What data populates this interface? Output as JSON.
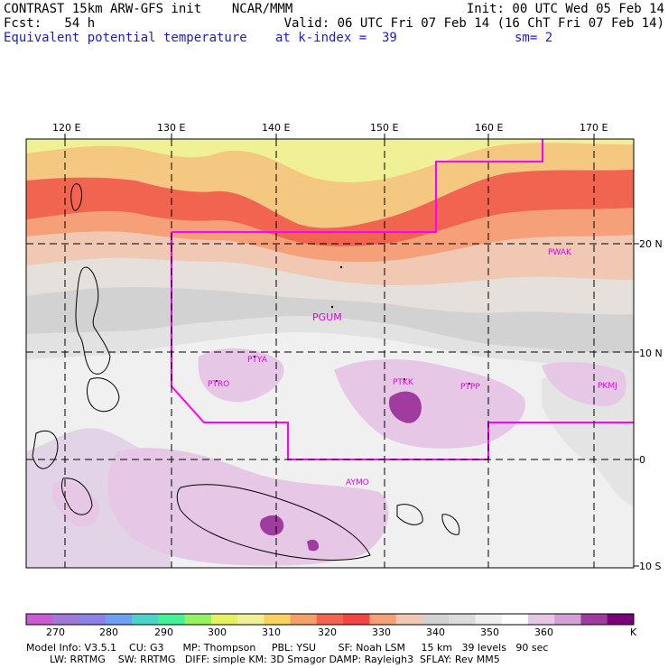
{
  "header": {
    "model_line": "CONTRAST 15km ARW-GFS init    NCAR/MMM",
    "init_line": "Init: 00 UTC Wed 05 Feb 14",
    "fcst_line": "Fcst:   54 h",
    "valid_line": "Valid: 06 UTC Fri 07 Feb 14 (16 ChT Fri 07 Feb 14)",
    "field_name": "Equivalent potential temperature",
    "level_line": "at k-index =  39",
    "smoothing_line": "sm= 2"
  },
  "map": {
    "lon_labels": [
      "120 E",
      "130 E",
      "140 E",
      "150 E",
      "160 E",
      "170 E"
    ],
    "lat_labels": [
      "20 N",
      "10 N",
      "0",
      "10 S"
    ],
    "stations": [
      "PWAK",
      "PGUM",
      "PTYA",
      "PTRO",
      "PTKK",
      "PTPP",
      "PKMJ",
      "AYMO"
    ],
    "bands_top_to_bottom_K": [
      305,
      315,
      328,
      336,
      343,
      348,
      352,
      356,
      362,
      366,
      368
    ]
  },
  "colorbar": {
    "labels": [
      "270",
      "280",
      "290",
      "300",
      "310",
      "320",
      "330",
      "340",
      "350",
      "360"
    ],
    "unit": "K",
    "colors": [
      "#c85ad2",
      "#a078d8",
      "#8c82e6",
      "#6ea0f0",
      "#50d2c8",
      "#46f096",
      "#96f064",
      "#e6f064",
      "#f0f096",
      "#fad264",
      "#f5a064",
      "#f06450",
      "#f04646",
      "#f5a078",
      "#f0c8b4",
      "#d2d2d2",
      "#dcdcdc",
      "#f0f0f0",
      "#ffffff",
      "#e6c8e6",
      "#d2a0d2",
      "#a03ca0",
      "#780078"
    ]
  },
  "model_info": {
    "line1": "Model Info: V3.5.1    CU: G3      MP: Thompson     PBL: YSU       SF: Noah LSM     15 km   39 levels   90 sec",
    "line2": "LW: RRTMG    SW: RRTMG   DIFF: simple KM: 3D Smagor DAMP: Rayleigh3  SFLAY: Rev MM5"
  }
}
